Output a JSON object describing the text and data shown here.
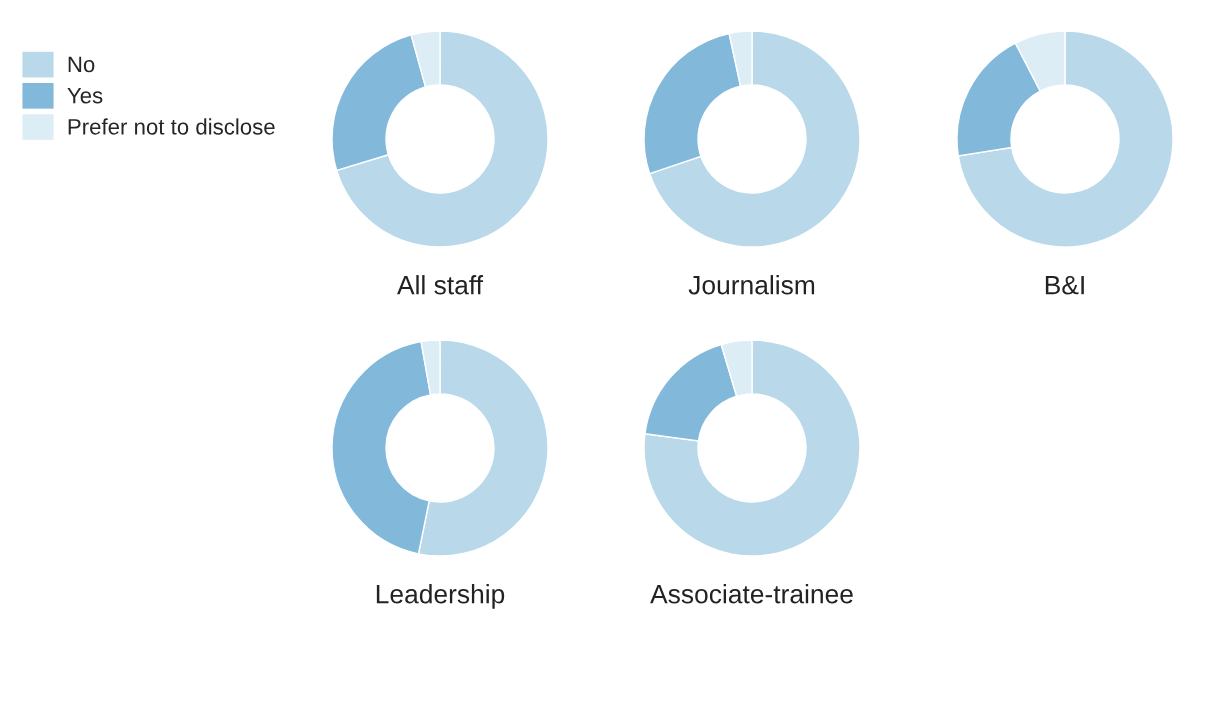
{
  "chart_data": {
    "type": "donut",
    "categories": [
      "No",
      "Yes",
      "Prefer not to disclose"
    ],
    "colors": [
      "#b9d8ea",
      "#82b9da",
      "#ddedf6"
    ],
    "legend": "top left",
    "series": [
      {
        "name": "All staff",
        "values": [
          70.3,
          25.4,
          4.3
        ]
      },
      {
        "name": "Journalism",
        "values": [
          69.8,
          26.8,
          3.4
        ]
      },
      {
        "name": "B&I",
        "values": [
          72.5,
          19.9,
          7.6
        ]
      },
      {
        "name": "Leadership",
        "values": [
          53.2,
          44.0,
          2.8
        ]
      },
      {
        "name": "Associate-trainee",
        "values": [
          77.1,
          18.3,
          4.6
        ]
      }
    ]
  }
}
